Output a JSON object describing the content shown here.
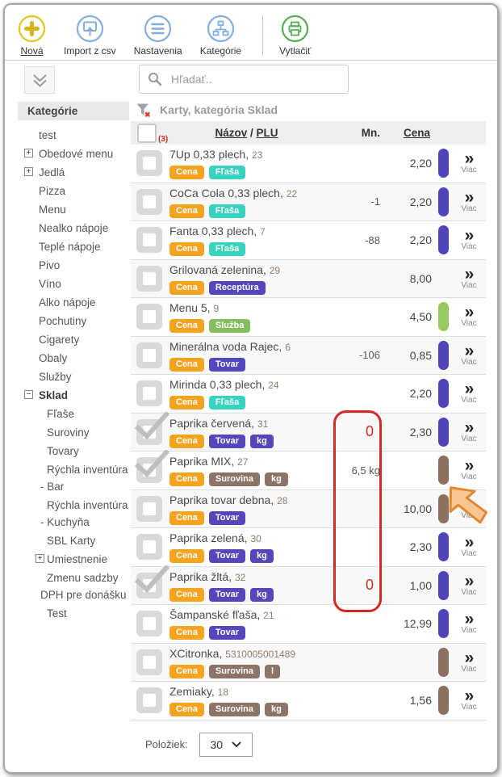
{
  "toolbar": {
    "items": [
      {
        "label": "Nová",
        "icon": "plus-circle-icon"
      },
      {
        "label": "Import z csv",
        "icon": "import-icon"
      },
      {
        "label": "Nastavenia",
        "icon": "settings-icon"
      },
      {
        "label": "Kategórie",
        "icon": "categories-icon"
      },
      {
        "label": "Vytlačiť",
        "icon": "print-icon"
      }
    ]
  },
  "search": {
    "placeholder": "Hľadať.."
  },
  "sidebar": {
    "header": "Kategórie",
    "items": [
      {
        "label": "test",
        "expander": null,
        "bold": false,
        "level": 1
      },
      {
        "label": "Obedové menu",
        "expander": "plus",
        "bold": false,
        "level": 1
      },
      {
        "label": "Jedlá",
        "expander": "plus",
        "bold": false,
        "level": 1
      },
      {
        "label": "Pizza",
        "expander": null,
        "bold": false,
        "level": 1
      },
      {
        "label": "Menu",
        "expander": null,
        "bold": false,
        "level": 1
      },
      {
        "label": "Nealko nápoje",
        "expander": null,
        "bold": false,
        "level": 1
      },
      {
        "label": "Teplé nápoje",
        "expander": null,
        "bold": false,
        "level": 1
      },
      {
        "label": "Pivo",
        "expander": null,
        "bold": false,
        "level": 1
      },
      {
        "label": "Víno",
        "expander": null,
        "bold": false,
        "level": 1
      },
      {
        "label": "Alko nápoje",
        "expander": null,
        "bold": false,
        "level": 1
      },
      {
        "label": "Pochutiny",
        "expander": null,
        "bold": false,
        "level": 1
      },
      {
        "label": "Cigarety",
        "expander": null,
        "bold": false,
        "level": 1
      },
      {
        "label": "Obaly",
        "expander": null,
        "bold": false,
        "level": 1
      },
      {
        "label": "Služby",
        "expander": null,
        "bold": false,
        "level": 1
      },
      {
        "label": "Sklad",
        "expander": "minus",
        "bold": true,
        "level": 1
      },
      {
        "label": "Fľaše",
        "expander": null,
        "bold": false,
        "level": 2
      },
      {
        "label": "Suroviny",
        "expander": null,
        "bold": false,
        "level": 2
      },
      {
        "label": "Tovary",
        "expander": null,
        "bold": false,
        "level": 2
      },
      {
        "label": "Rýchla inventúra - Bar",
        "expander": null,
        "bold": false,
        "level": 2
      },
      {
        "label": "Rýchla inventúra - Kuchyňa",
        "expander": null,
        "bold": false,
        "level": 2
      },
      {
        "label": "SBL Karty",
        "expander": null,
        "bold": false,
        "level": 2
      },
      {
        "label": "Umiestnenie",
        "expander": "plus",
        "bold": false,
        "level": 2
      },
      {
        "label": "Zmenu sadzby DPH pre donášku",
        "expander": null,
        "bold": false,
        "level": 2
      },
      {
        "label": "Test",
        "expander": null,
        "bold": false,
        "level": 2
      }
    ]
  },
  "content": {
    "title": "Karty, kategória Sklad",
    "table": {
      "selected_count": "(3)",
      "headers": {
        "name": "Názov",
        "sep": "/",
        "plu": "PLU",
        "qty": "Mn.",
        "price": "Cena"
      },
      "more_symbol": "»",
      "more_label": "Viac",
      "rows": [
        {
          "name": "7Up 0,33 plech",
          "plu": "23",
          "tags": [
            {
              "label": "Cena",
              "color": "orange"
            },
            {
              "label": "Fľaša",
              "color": "teal"
            }
          ],
          "qty": "",
          "qty_alert": false,
          "price": "2,20",
          "bar": "purple",
          "checked": false
        },
        {
          "name": "CoCa Cola 0,33 plech",
          "plu": "22",
          "tags": [
            {
              "label": "Cena",
              "color": "orange"
            },
            {
              "label": "Fľaša",
              "color": "teal"
            }
          ],
          "qty": "-1",
          "qty_alert": false,
          "price": "2,20",
          "bar": "purple",
          "checked": false
        },
        {
          "name": "Fanta 0,33 plech",
          "plu": "7",
          "tags": [
            {
              "label": "Cena",
              "color": "orange"
            },
            {
              "label": "Fľaša",
              "color": "teal"
            }
          ],
          "qty": "-88",
          "qty_alert": false,
          "price": "2,20",
          "bar": "purple",
          "checked": false
        },
        {
          "name": "Grilovaná zelenina",
          "plu": "29",
          "tags": [
            {
              "label": "Cena",
              "color": "orange"
            },
            {
              "label": "Receptúra",
              "color": "indigo"
            }
          ],
          "qty": "",
          "qty_alert": false,
          "price": "8,00",
          "bar": "none",
          "checked": false
        },
        {
          "name": "Menu 5",
          "plu": "9",
          "tags": [
            {
              "label": "Cena",
              "color": "orange"
            },
            {
              "label": "Služba",
              "color": "green"
            }
          ],
          "qty": "",
          "qty_alert": false,
          "price": "4,50",
          "bar": "green",
          "checked": false
        },
        {
          "name": "Minerálna voda Rajec",
          "plu": "6",
          "tags": [
            {
              "label": "Cena",
              "color": "orange"
            },
            {
              "label": "Tovar",
              "color": "indigo"
            }
          ],
          "qty": "-106",
          "qty_alert": false,
          "price": "0,85",
          "bar": "purple",
          "checked": false
        },
        {
          "name": "Mirinda 0,33 plech",
          "plu": "24",
          "tags": [
            {
              "label": "Cena",
              "color": "orange"
            },
            {
              "label": "Fľaša",
              "color": "teal"
            }
          ],
          "qty": "",
          "qty_alert": false,
          "price": "2,20",
          "bar": "purple",
          "checked": false
        },
        {
          "name": "Paprika červená",
          "plu": "31",
          "tags": [
            {
              "label": "Cena",
              "color": "orange"
            },
            {
              "label": "Tovar",
              "color": "indigo"
            },
            {
              "label": "kg",
              "color": "indigo"
            }
          ],
          "qty": "0",
          "qty_alert": true,
          "price": "2,30",
          "bar": "purple",
          "checked": true
        },
        {
          "name": "Paprika MIX",
          "plu": "27",
          "tags": [
            {
              "label": "Cena",
              "color": "orange"
            },
            {
              "label": "Surovina",
              "color": "brown"
            },
            {
              "label": "kg",
              "color": "brown"
            }
          ],
          "qty": "6,5 kg",
          "qty_alert": false,
          "price": "",
          "bar": "brown",
          "checked": true
        },
        {
          "name": "Paprika tovar debna",
          "plu": "28",
          "tags": [
            {
              "label": "Cena",
              "color": "orange"
            },
            {
              "label": "Tovar",
              "color": "indigo"
            }
          ],
          "qty": "",
          "qty_alert": false,
          "price": "10,00",
          "bar": "brown",
          "checked": false
        },
        {
          "name": "Paprika zelená",
          "plu": "30",
          "tags": [
            {
              "label": "Cena",
              "color": "orange"
            },
            {
              "label": "Tovar",
              "color": "indigo"
            },
            {
              "label": "kg",
              "color": "indigo"
            }
          ],
          "qty": "",
          "qty_alert": false,
          "price": "2,30",
          "bar": "purple",
          "checked": false
        },
        {
          "name": "Paprika žltá",
          "plu": "32",
          "tags": [
            {
              "label": "Cena",
              "color": "orange"
            },
            {
              "label": "Tovar",
              "color": "indigo"
            },
            {
              "label": "kg",
              "color": "indigo"
            }
          ],
          "qty": "0",
          "qty_alert": true,
          "price": "1,00",
          "bar": "purple",
          "checked": true
        },
        {
          "name": "Šampanské fľaša",
          "plu": "21",
          "tags": [
            {
              "label": "Cena",
              "color": "orange"
            },
            {
              "label": "Tovar",
              "color": "indigo"
            }
          ],
          "qty": "",
          "qty_alert": false,
          "price": "12,99",
          "bar": "purple",
          "checked": false
        },
        {
          "name": "XCitronka",
          "plu": "5310005001489",
          "tags": [
            {
              "label": "Cena",
              "color": "orange"
            },
            {
              "label": "Surovina",
              "color": "brown"
            },
            {
              "label": "l",
              "color": "brown"
            }
          ],
          "qty": "",
          "qty_alert": false,
          "price": "",
          "bar": "brown",
          "checked": false
        },
        {
          "name": "Zemiaky",
          "plu": "18",
          "tags": [
            {
              "label": "Cena",
              "color": "orange"
            },
            {
              "label": "Surovina",
              "color": "brown"
            },
            {
              "label": "kg",
              "color": "brown"
            }
          ],
          "qty": "",
          "qty_alert": false,
          "price": "1,56",
          "bar": "brown",
          "checked": false
        }
      ]
    },
    "footer": {
      "label": "Položiek:",
      "page_size": "30"
    }
  },
  "colors": {
    "tag_orange": "#f6a320",
    "tag_teal": "#38d3be",
    "tag_indigo": "#5347bb",
    "tag_green": "#85bd5f",
    "tag_brown": "#8c7466",
    "bar_purple": "#5044b8",
    "bar_green": "#97c965",
    "bar_brown": "#8c7060",
    "highlight_red": "#d02b26",
    "qty_alert_red": "#cc2b20",
    "cursor_fill": "#f9c694",
    "cursor_stroke": "#e2862c",
    "accent_new_yellow": "#e5c41d",
    "accent_blue": "#84aede",
    "accent_print_green": "#55ae57"
  }
}
